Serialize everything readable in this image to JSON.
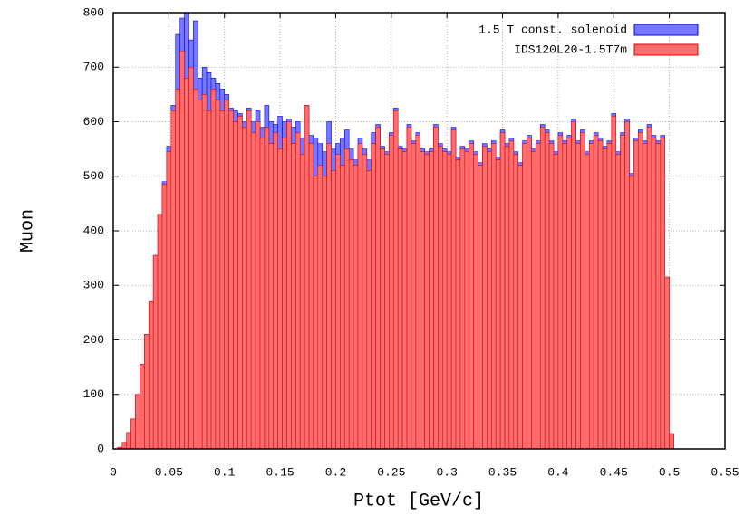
{
  "chart_data": {
    "type": "histogram",
    "xlabel": "Ptot [GeV/c]",
    "ylabel": "Muon",
    "bins": [
      0,
      0.004,
      0.008,
      0.012,
      0.016,
      0.02,
      0.024,
      0.028,
      0.032,
      0.036,
      0.04,
      0.044,
      0.048,
      0.052,
      0.056,
      0.06,
      0.064,
      0.068,
      0.072,
      0.076,
      0.08,
      0.084,
      0.088,
      0.092,
      0.096,
      0.1,
      0.104,
      0.108,
      0.112,
      0.116,
      0.12,
      0.124,
      0.128,
      0.132,
      0.136,
      0.14,
      0.144,
      0.148,
      0.152,
      0.156,
      0.16,
      0.164,
      0.168,
      0.172,
      0.176,
      0.18,
      0.184,
      0.188,
      0.192,
      0.196,
      0.2,
      0.204,
      0.208,
      0.212,
      0.216,
      0.22,
      0.224,
      0.228,
      0.232,
      0.236,
      0.24,
      0.244,
      0.248,
      0.252,
      0.256,
      0.26,
      0.264,
      0.268,
      0.272,
      0.276,
      0.28,
      0.284,
      0.288,
      0.292,
      0.296,
      0.3,
      0.304,
      0.308,
      0.312,
      0.316,
      0.32,
      0.324,
      0.328,
      0.332,
      0.336,
      0.34,
      0.344,
      0.348,
      0.352,
      0.356,
      0.36,
      0.364,
      0.368,
      0.372,
      0.376,
      0.38,
      0.384,
      0.388,
      0.392,
      0.396,
      0.4,
      0.404,
      0.408,
      0.412,
      0.416,
      0.42,
      0.424,
      0.428,
      0.432,
      0.436,
      0.44,
      0.444,
      0.448,
      0.452,
      0.456,
      0.46,
      0.464,
      0.468,
      0.472,
      0.476,
      0.48,
      0.484,
      0.488,
      0.492,
      0.496,
      0.5,
      0.504
    ],
    "series": [
      {
        "name": "1.5 T const. solenoid",
        "color": "#7878ff",
        "edge": "#0000ff",
        "values": [
          0,
          3,
          12,
          30,
          55,
          100,
          155,
          210,
          270,
          355,
          430,
          490,
          555,
          630,
          760,
          790,
          800,
          750,
          785,
          680,
          700,
          690,
          680,
          670,
          660,
          650,
          625,
          620,
          615,
          600,
          625,
          600,
          620,
          590,
          630,
          600,
          595,
          610,
          600,
          605,
          590,
          600,
          570,
          630,
          575,
          570,
          560,
          545,
          600,
          550,
          560,
          570,
          585,
          550,
          530,
          570,
          550,
          530,
          580,
          595,
          555,
          545,
          580,
          625,
          555,
          550,
          595,
          565,
          580,
          550,
          545,
          550,
          595,
          560,
          550,
          545,
          590,
          535,
          555,
          550,
          565,
          545,
          525,
          560,
          550,
          565,
          535,
          585,
          560,
          570,
          545,
          525,
          565,
          575,
          550,
          565,
          595,
          585,
          565,
          545,
          580,
          565,
          575,
          605,
          565,
          585,
          545,
          565,
          580,
          570,
          555,
          565,
          615,
          545,
          580,
          605,
          505,
          570,
          585,
          565,
          595,
          575,
          565,
          575,
          315,
          28
        ]
      },
      {
        "name": "IDS120L20-1.5T7m",
        "color": "#ff6e6e",
        "edge": "#e00000",
        "values": [
          0,
          3,
          12,
          30,
          55,
          100,
          155,
          210,
          270,
          355,
          430,
          485,
          545,
          620,
          660,
          730,
          680,
          700,
          660,
          640,
          650,
          620,
          660,
          640,
          620,
          640,
          620,
          600,
          610,
          590,
          620,
          580,
          600,
          570,
          590,
          560,
          580,
          550,
          570,
          600,
          560,
          580,
          540,
          630,
          560,
          500,
          520,
          500,
          560,
          510,
          540,
          520,
          550,
          530,
          520,
          560,
          540,
          510,
          560,
          590,
          550,
          540,
          575,
          620,
          550,
          545,
          590,
          560,
          575,
          545,
          540,
          545,
          590,
          555,
          545,
          540,
          585,
          530,
          550,
          545,
          560,
          540,
          520,
          555,
          545,
          560,
          530,
          580,
          555,
          565,
          540,
          520,
          560,
          570,
          545,
          560,
          590,
          580,
          560,
          540,
          575,
          560,
          570,
          600,
          560,
          580,
          540,
          560,
          575,
          565,
          550,
          560,
          610,
          540,
          575,
          600,
          500,
          565,
          580,
          560,
          590,
          570,
          560,
          570,
          315,
          28
        ]
      }
    ],
    "xlim": [
      0,
      0.55
    ],
    "xticks": [
      0,
      0.05,
      0.1,
      0.15,
      0.2,
      0.25,
      0.3,
      0.35,
      0.4,
      0.45,
      0.5,
      0.55
    ],
    "ylim": [
      0,
      800
    ],
    "yticks": [
      0,
      100,
      200,
      300,
      400,
      500,
      600,
      700,
      800
    ],
    "grid": true,
    "legend": "upper right"
  }
}
